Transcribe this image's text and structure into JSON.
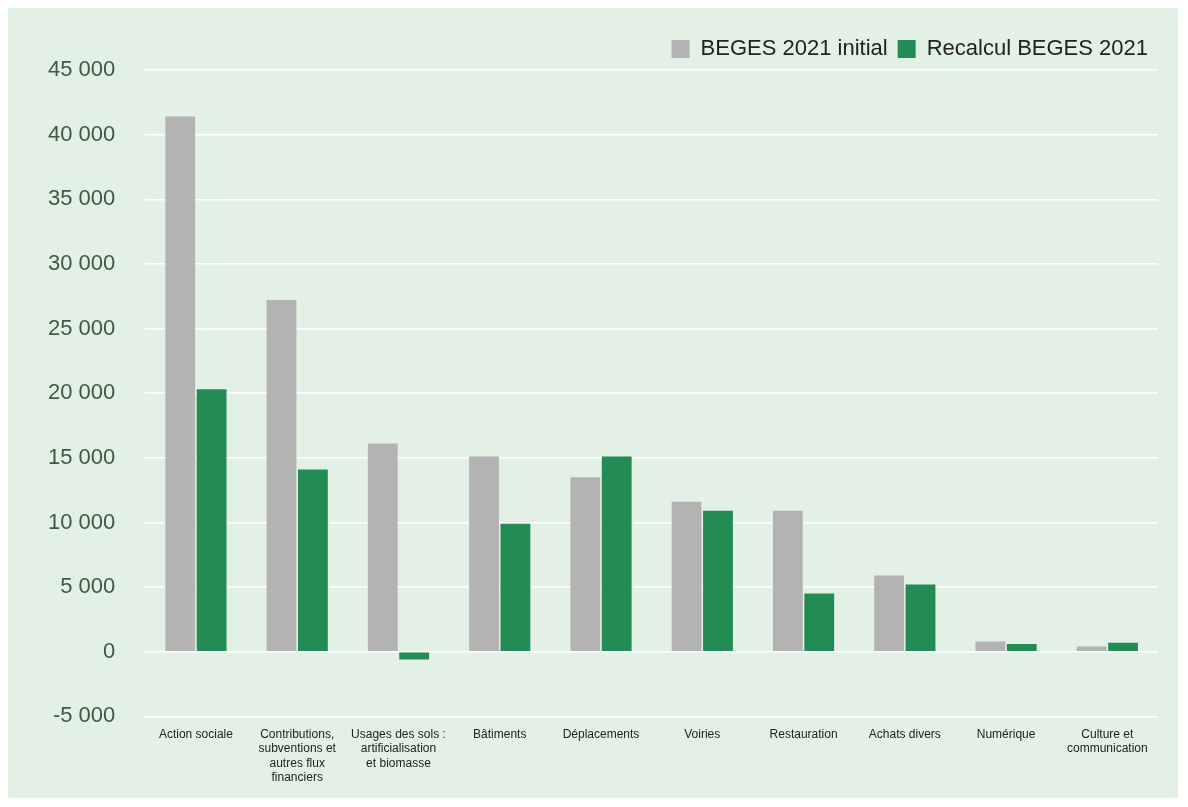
{
  "chart_data": {
    "type": "bar",
    "categories": [
      "Action sociale",
      "Contributions, subventions et autres flux financiers",
      "Usages des sols : artificialisation et biomasse",
      "Bâtiments",
      "Déplacements",
      "Voiries",
      "Restauration",
      "Achats divers",
      "Numérique",
      "Culture et communication"
    ],
    "series": [
      {
        "name": "BEGES 2021 initial",
        "color": "#b3b3b3",
        "values": [
          41400,
          27200,
          16100,
          15100,
          13500,
          11600,
          10900,
          5900,
          800,
          400
        ]
      },
      {
        "name": "Recalcul BEGES 2021",
        "color": "#238c55",
        "values": [
          20300,
          14100,
          -600,
          9900,
          15100,
          10900,
          4500,
          5200,
          600,
          700
        ]
      }
    ],
    "ylim": [
      -5000,
      45000
    ],
    "yticks": [
      {
        "value": -5000,
        "label": "-5 000"
      },
      {
        "value": 0,
        "label": "0"
      },
      {
        "value": 5000,
        "label": "5 000"
      },
      {
        "value": 10000,
        "label": "10 000"
      },
      {
        "value": 15000,
        "label": "15 000"
      },
      {
        "value": 20000,
        "label": "20 000"
      },
      {
        "value": 25000,
        "label": "25 000"
      },
      {
        "value": 30000,
        "label": "30 000"
      },
      {
        "value": 35000,
        "label": "35 000"
      },
      {
        "value": 40000,
        "label": "40 000"
      },
      {
        "value": 45000,
        "label": "45 000"
      }
    ],
    "grid": "y",
    "legend": "top right"
  }
}
